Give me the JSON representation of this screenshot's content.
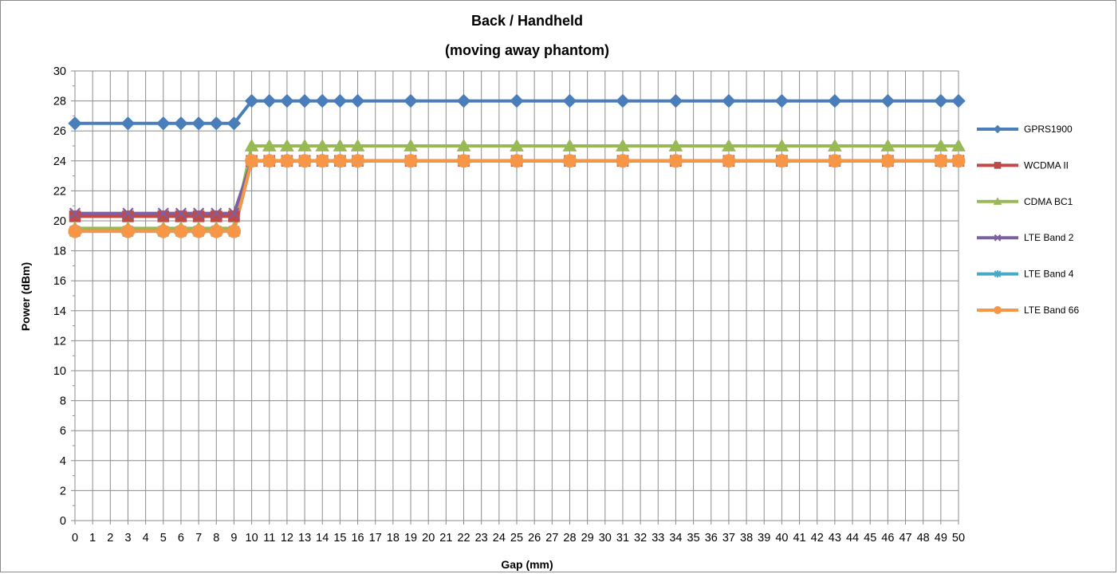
{
  "chart_data": {
    "type": "line",
    "title_lines": [
      "Back / Handheld",
      "(moving away phantom)"
    ],
    "xlabel": "Gap (mm)",
    "ylabel": "Power (dBm)",
    "x_categories": [
      "0",
      "1",
      "2",
      "3",
      "4",
      "5",
      "6",
      "7",
      "8",
      "9",
      "10",
      "11",
      "12",
      "13",
      "14",
      "15",
      "16",
      "17",
      "18",
      "19",
      "20",
      "21",
      "22",
      "23",
      "24",
      "25",
      "26",
      "27",
      "28",
      "29",
      "30",
      "31",
      "32",
      "33",
      "34",
      "35",
      "36",
      "37",
      "38",
      "39",
      "40",
      "41",
      "42",
      "43",
      "44",
      "45",
      "46",
      "47",
      "48",
      "49",
      "50"
    ],
    "ylim": [
      0,
      30
    ],
    "yticks": [
      0,
      2,
      4,
      6,
      8,
      10,
      12,
      14,
      16,
      18,
      20,
      22,
      24,
      26,
      28,
      30
    ],
    "grid": true,
    "legend_position": "right",
    "series": [
      {
        "name": "GPRS1900",
        "color": "#4a7ebb",
        "marker": "diamond",
        "x": [
          0,
          3,
          5,
          6,
          7,
          8,
          9,
          10,
          11,
          12,
          13,
          14,
          15,
          16,
          19,
          22,
          25,
          28,
          31,
          34,
          37,
          40,
          43,
          46,
          49,
          50
        ],
        "y": [
          26.5,
          26.5,
          26.5,
          26.5,
          26.5,
          26.5,
          26.5,
          28,
          28,
          28,
          28,
          28,
          28,
          28,
          28,
          28,
          28,
          28,
          28,
          28,
          28,
          28,
          28,
          28,
          28,
          28
        ]
      },
      {
        "name": "WCDMA II",
        "color": "#be4b48",
        "marker": "square",
        "x": [
          0,
          3,
          5,
          6,
          7,
          8,
          9,
          10,
          11,
          12,
          13,
          14,
          15,
          16,
          19,
          22,
          25,
          28,
          31,
          34,
          37,
          40,
          43,
          46,
          49,
          50
        ],
        "y": [
          20.3,
          20.3,
          20.3,
          20.3,
          20.3,
          20.3,
          20.3,
          24,
          24,
          24,
          24,
          24,
          24,
          24,
          24,
          24,
          24,
          24,
          24,
          24,
          24,
          24,
          24,
          24,
          24,
          24
        ]
      },
      {
        "name": "CDMA BC1",
        "color": "#98b954",
        "marker": "triangle",
        "x": [
          0,
          3,
          5,
          6,
          7,
          8,
          9,
          10,
          11,
          12,
          13,
          14,
          15,
          16,
          19,
          22,
          25,
          28,
          31,
          34,
          37,
          40,
          43,
          46,
          49,
          50
        ],
        "y": [
          19.5,
          19.5,
          19.5,
          19.5,
          19.5,
          19.5,
          19.5,
          25,
          25,
          25,
          25,
          25,
          25,
          25,
          25,
          25,
          25,
          25,
          25,
          25,
          25,
          25,
          25,
          25,
          25,
          25
        ]
      },
      {
        "name": "LTE Band 2",
        "color": "#7d60a0",
        "marker": "x",
        "x": [
          0,
          3,
          5,
          6,
          7,
          8,
          9,
          10,
          11,
          12,
          13,
          14,
          15,
          16,
          19,
          22,
          25,
          28,
          31,
          34,
          37,
          40,
          43,
          46,
          49,
          50
        ],
        "y": [
          20.5,
          20.5,
          20.5,
          20.5,
          20.5,
          20.5,
          20.5,
          24,
          24,
          24,
          24,
          24,
          24,
          24,
          24,
          24,
          24,
          24,
          24,
          24,
          24,
          24,
          24,
          24,
          24,
          24
        ]
      },
      {
        "name": "LTE Band 4",
        "color": "#46aac5",
        "marker": "star",
        "x": [
          0,
          3,
          5,
          6,
          7,
          8,
          9,
          10,
          11,
          12,
          13,
          14,
          15,
          16,
          19,
          22,
          25,
          28,
          31,
          34,
          37,
          40,
          43,
          46,
          49,
          50
        ],
        "y": [
          19.3,
          19.3,
          19.3,
          19.3,
          19.3,
          19.3,
          19.3,
          24,
          24,
          24,
          24,
          24,
          24,
          24,
          24,
          24,
          24,
          24,
          24,
          24,
          24,
          24,
          24,
          24,
          24,
          24
        ]
      },
      {
        "name": "LTE Band 66",
        "color": "#f79646",
        "marker": "circle",
        "x": [
          0,
          3,
          5,
          6,
          7,
          8,
          9,
          10,
          11,
          12,
          13,
          14,
          15,
          16,
          19,
          22,
          25,
          28,
          31,
          34,
          37,
          40,
          43,
          46,
          49,
          50
        ],
        "y": [
          19.3,
          19.3,
          19.3,
          19.3,
          19.3,
          19.3,
          19.3,
          24,
          24,
          24,
          24,
          24,
          24,
          24,
          24,
          24,
          24,
          24,
          24,
          24,
          24,
          24,
          24,
          24,
          24,
          24
        ]
      }
    ]
  }
}
